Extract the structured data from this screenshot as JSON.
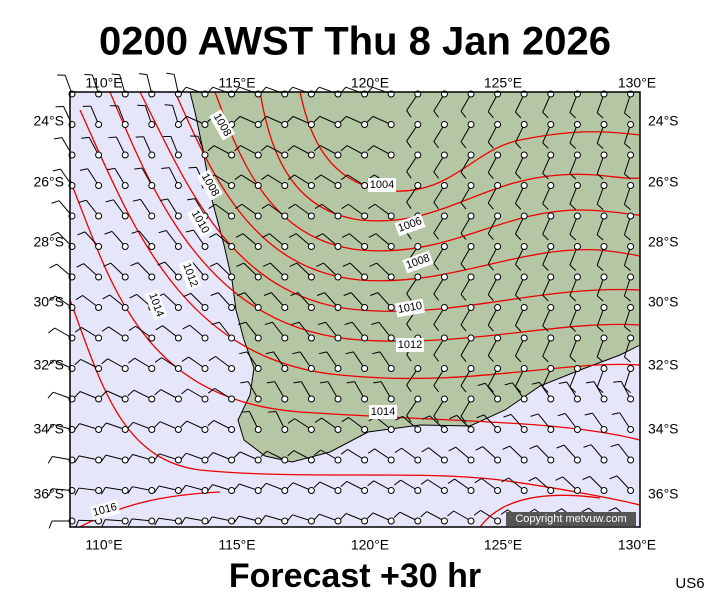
{
  "header": {
    "title": "0200 AWST Thu 8 Jan 2026"
  },
  "map": {
    "lon_labels": [
      "110°E",
      "115°E",
      "120°E",
      "125°E",
      "130°E"
    ],
    "lat_labels": [
      "24°S",
      "26°S",
      "28°S",
      "30°S",
      "32°S",
      "34°S",
      "36°S"
    ],
    "isobar_labels": [
      {
        "text": "1008"
      },
      {
        "text": "1008"
      },
      {
        "text": "1010"
      },
      {
        "text": "1004"
      },
      {
        "text": "1006"
      },
      {
        "text": "1008"
      },
      {
        "text": "1010"
      },
      {
        "text": "1012"
      },
      {
        "text": "1014"
      },
      {
        "text": "1012"
      },
      {
        "text": "1014"
      },
      {
        "text": "1016"
      }
    ],
    "copyright": "Copyright metvuw.com"
  },
  "footer": {
    "forecast": "Forecast +30 hr",
    "code": "US6"
  }
}
